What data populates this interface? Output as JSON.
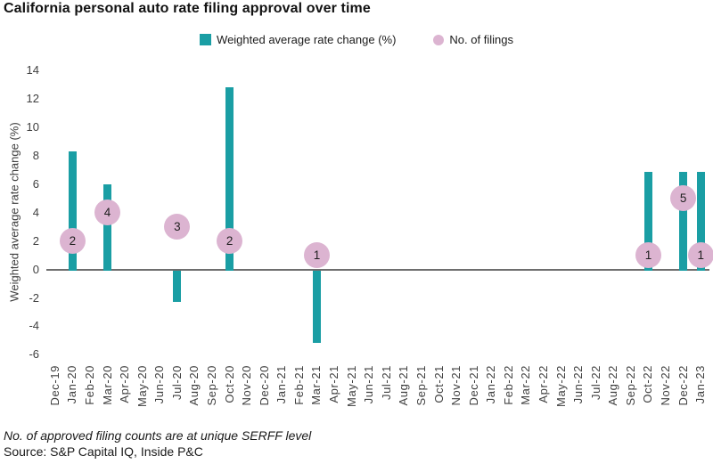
{
  "title": "California personal auto rate filing approval over time",
  "legend": {
    "bar_label": "Weighted average rate change (%)",
    "filings_label": "No. of filings"
  },
  "footnote": "No. of approved filing counts are at unique SERFF level",
  "source": "Source: S&P Capital IQ, Inside P&C",
  "colors": {
    "bar": "#1a9ea4",
    "bubble": "#dcb4d1",
    "bubble_text": "#1f1f1f",
    "zero_line": "#6e6e6e",
    "axis_text": "#3f3f3f"
  },
  "chart_data": {
    "type": "bar",
    "title": "California personal auto rate filing approval over time",
    "xlabel": "",
    "ylabel": "Weighted average rate change (%)",
    "ylim": [
      -6,
      14
    ],
    "ytick_step": 2,
    "grid": false,
    "legend_position": "top-center",
    "categories": [
      "Dec-19",
      "Jan-20",
      "Feb-20",
      "Mar-20",
      "Apr-20",
      "May-20",
      "Jun-20",
      "Jul-20",
      "Aug-20",
      "Sep-20",
      "Oct-20",
      "Nov-20",
      "Dec-20",
      "Jan-21",
      "Feb-21",
      "Mar-21",
      "Apr-21",
      "May-21",
      "Jun-21",
      "Jul-21",
      "Aug-21",
      "Sep-21",
      "Oct-21",
      "Nov-21",
      "Dec-21",
      "Jan-22",
      "Feb-22",
      "Mar-22",
      "Apr-22",
      "May-22",
      "Jun-22",
      "Jul-22",
      "Aug-22",
      "Sep-22",
      "Oct-22",
      "Nov-22",
      "Dec-22",
      "Jan-23"
    ],
    "series": [
      {
        "name": "Weighted average rate change (%)",
        "mark": "bar",
        "points": {
          "Jan-20": 8.3,
          "Mar-20": 6.0,
          "Jul-20": -2.2,
          "Oct-20": 12.8,
          "Mar-21": -5.1,
          "Oct-22": 6.9,
          "Dec-22": 6.9,
          "Jan-23": 6.9
        }
      },
      {
        "name": "No. of filings",
        "mark": "bubble",
        "points": {
          "Jan-20": 2,
          "Mar-20": 4,
          "Jul-20": 3,
          "Oct-20": 2,
          "Mar-21": 1,
          "Oct-22": 1,
          "Dec-22": 5,
          "Jan-23": 1
        }
      }
    ]
  }
}
